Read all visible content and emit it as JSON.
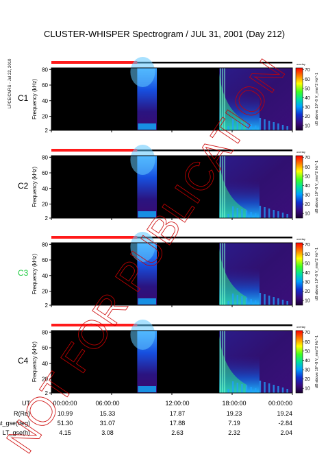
{
  "title": "CLUSTER-WHISPER Spectrogram / JUL 31, 2001 (Day 212)",
  "side_credit": "LPCE/CNRS - Jul 22, 2010",
  "watermark": "NOT FOR PUBLICATION",
  "colors": {
    "page_bg": "#ffffff",
    "spectrogram_off": "#000000",
    "status_red": "#ff1a1a",
    "status_black": "#000000",
    "c3_label": "#22cc44",
    "watermark": "#cc0000"
  },
  "chart_data": {
    "type": "heatmap",
    "panels": [
      {
        "label": "C1",
        "label_color": "#000000",
        "ylabel": "Frequency (kHz)",
        "yticks": [
          2,
          20,
          40,
          60,
          80
        ],
        "ylim": [
          2,
          82
        ],
        "colorbar_label": "dB above 10^-8 V_rms^2 Hz^-1",
        "colorbar_ticks": [
          10,
          20,
          30,
          40,
          50,
          60,
          70
        ],
        "colorbar_header": "overlay",
        "status_bar_red_until_hours": 11.4
      },
      {
        "label": "C2",
        "label_color": "#000000",
        "ylabel": "Frequency (kHz)",
        "yticks": [
          2,
          20,
          40,
          60,
          80
        ],
        "ylim": [
          2,
          82
        ],
        "colorbar_label": "dB above 10^-8 V_rms^2 Hz^-1",
        "colorbar_ticks": [
          10,
          20,
          30,
          40,
          50,
          60,
          70
        ],
        "colorbar_header": "overlay",
        "status_bar_red_until_hours": 11.4
      },
      {
        "label": "C3",
        "label_color": "#22cc44",
        "ylabel": "Frequency (kHz)",
        "yticks": [
          2,
          20,
          40,
          60,
          80
        ],
        "ylim": [
          2,
          82
        ],
        "colorbar_label": "dB above 10^-8 V_rms^2 Hz^-1",
        "colorbar_ticks": [
          10,
          20,
          30,
          40,
          50,
          60,
          70
        ],
        "colorbar_header": "overlay",
        "status_bar_red_until_hours": 11.4
      },
      {
        "label": "C4",
        "label_color": "#000000",
        "ylabel": "Frequency (kHz)",
        "yticks": [
          2,
          20,
          40,
          60,
          80
        ],
        "ylim": [
          2,
          82
        ],
        "colorbar_label": "dB above 10^-8 V_rms^2 Hz^-1",
        "colorbar_ticks": [
          10,
          20,
          30,
          40,
          50,
          60,
          70
        ],
        "colorbar_header": "overlay",
        "status_bar_red_until_hours": 11.4
      }
    ],
    "x_hours_range": [
      0,
      32
    ],
    "data_segments_hours": [
      [
        11.4,
        14.0
      ],
      [
        22.3,
        32.0
      ]
    ],
    "colorbar_range_db": [
      5,
      72
    ],
    "ephemeris": {
      "row_labels": [
        "UT",
        "R(Re)",
        "Lat_gse(deg)",
        "LT_gse(h)"
      ],
      "columns": [
        {
          "UT": "00:00:00",
          "R(Re)": "10.99",
          "Lat_gse(deg)": "51.30",
          "LT_gse(h)": "4.15"
        },
        {
          "UT": "06:00:00",
          "R(Re)": "15.33",
          "Lat_gse(deg)": "31.07",
          "LT_gse(h)": "3.08"
        },
        {
          "UT": "12:00:00",
          "R(Re)": "17.87",
          "Lat_gse(deg)": "17.88",
          "LT_gse(h)": "2.63"
        },
        {
          "UT": "18:00:00",
          "R(Re)": "19.23",
          "Lat_gse(deg)": "7.19",
          "LT_gse(h)": "2.32"
        },
        {
          "UT": "00:00:00",
          "R(Re)": "19.24",
          "Lat_gse(deg)": "-2.84",
          "LT_gse(h)": "2.04"
        }
      ]
    }
  }
}
